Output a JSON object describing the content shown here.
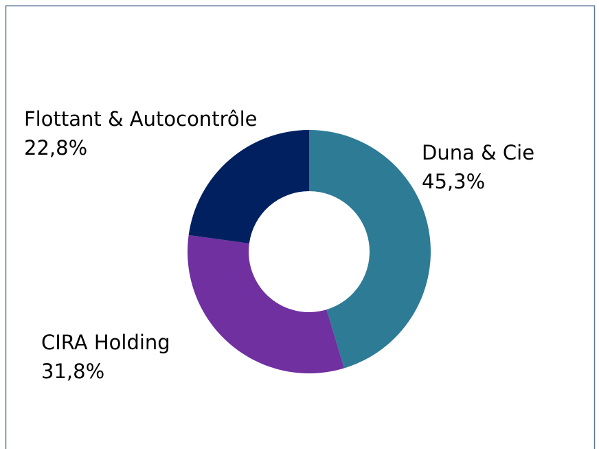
{
  "chart_data": {
    "type": "donut",
    "categories": [
      "Duna & Cie",
      "CIRA Holding",
      "Flottant & Autocontrôle"
    ],
    "values": [
      45.3,
      31.8,
      22.8
    ],
    "value_labels": [
      "45,3%",
      "31,8%",
      "22,8%"
    ],
    "colors": [
      "#2e7b96",
      "#7030a0",
      "#002060"
    ]
  }
}
